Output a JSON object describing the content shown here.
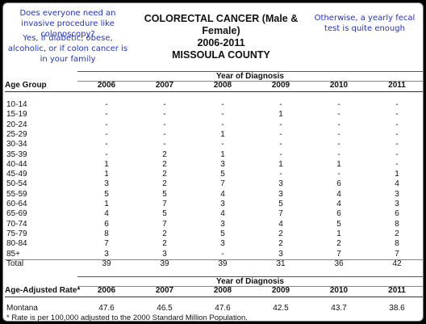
{
  "notes": {
    "q": "Does everyone need an invasive procedure like colonoscopy?",
    "yes": "Yes, if diabetic, obese, alcoholic, or if colon cancer is in your family",
    "otherwise": "Otherwise, a yearly fecal test is quite enough"
  },
  "title": {
    "line1": "COLORECTAL CANCER (Male & Female)",
    "line2": "2006-2011",
    "line3": "MISSOULA COUNTY"
  },
  "table1": {
    "band": "Year of Diagnosis",
    "first_header": "Age Group",
    "years": [
      "2006",
      "2007",
      "2008",
      "2009",
      "2010",
      "2011"
    ],
    "rows": [
      {
        "label": "10-14",
        "values": [
          "-",
          "-",
          "-",
          "-",
          "-",
          "-"
        ]
      },
      {
        "label": "15-19",
        "values": [
          "-",
          "-",
          "-",
          "1",
          "-",
          "-"
        ]
      },
      {
        "label": "20-24",
        "values": [
          "-",
          "-",
          "-",
          "-",
          "-",
          "-"
        ]
      },
      {
        "label": "25-29",
        "values": [
          "-",
          "-",
          "1",
          "-",
          "-",
          "-"
        ]
      },
      {
        "label": "30-34",
        "values": [
          "-",
          "-",
          "-",
          "-",
          "-",
          "-"
        ]
      },
      {
        "label": "35-39",
        "values": [
          "-",
          "2",
          "1",
          "-",
          "-",
          "-"
        ]
      },
      {
        "label": "40-44",
        "values": [
          "1",
          "2",
          "3",
          "1",
          "1",
          "-"
        ]
      },
      {
        "label": "45-49",
        "values": [
          "1",
          "2",
          "5",
          "-",
          "-",
          "1"
        ]
      },
      {
        "label": "50-54",
        "values": [
          "3",
          "2",
          "7",
          "3",
          "6",
          "4"
        ]
      },
      {
        "label": "55-59",
        "values": [
          "5",
          "5",
          "4",
          "3",
          "4",
          "3"
        ]
      },
      {
        "label": "60-64",
        "values": [
          "1",
          "7",
          "3",
          "5",
          "4",
          "3"
        ]
      },
      {
        "label": "65-69",
        "values": [
          "4",
          "5",
          "4",
          "7",
          "6",
          "6"
        ]
      },
      {
        "label": "70-74",
        "values": [
          "6",
          "7",
          "3",
          "4",
          "5",
          "8"
        ]
      },
      {
        "label": "75-79",
        "values": [
          "8",
          "2",
          "5",
          "2",
          "1",
          "2"
        ]
      },
      {
        "label": "80-84",
        "values": [
          "7",
          "2",
          "3",
          "2",
          "2",
          "8"
        ]
      },
      {
        "label": "85+",
        "values": [
          "3",
          "3",
          "-",
          "3",
          "7",
          "7"
        ]
      }
    ],
    "total": {
      "label": "Total",
      "values": [
        "39",
        "39",
        "39",
        "31",
        "36",
        "42"
      ]
    }
  },
  "table2": {
    "band": "Year of Diagnosis",
    "first_header": "Age-Adjusted Rate*",
    "years": [
      "2006",
      "2007",
      "2008",
      "2009",
      "2010",
      "2011"
    ],
    "row": {
      "label": "Montana",
      "values": [
        "47.6",
        "46.5",
        "47.6",
        "42.5",
        "43.7",
        "38.6"
      ]
    }
  },
  "footnote": "* Rate is per 100,000 adjusted to the 2000 Standard Million Population."
}
